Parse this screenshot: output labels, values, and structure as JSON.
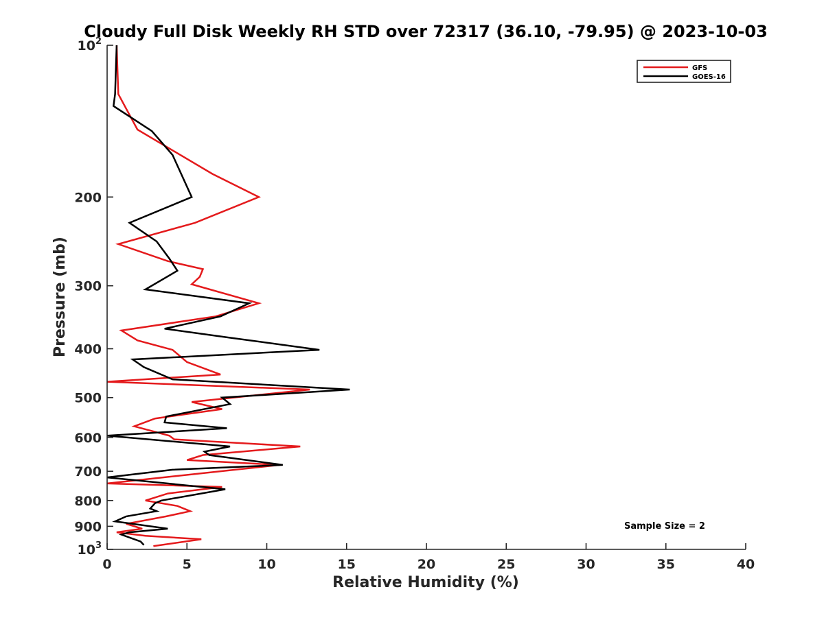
{
  "chart_data": {
    "type": "line",
    "title": "Cloudy Full Disk Weekly RH STD over 72317 (36.10, -79.95) @ 2023-10-03",
    "xlabel": "Relative Humidity (%)",
    "ylabel": "Pressure (mb)",
    "xlim": [
      0,
      40
    ],
    "ylim": [
      100,
      1000
    ],
    "y_scale": "log",
    "y_reversed": true,
    "grid": false,
    "legend_position": "top-right",
    "x_ticks": [
      0,
      5,
      10,
      15,
      20,
      25,
      30,
      35,
      40
    ],
    "x_tick_labels": [
      "0",
      "5",
      "10",
      "15",
      "20",
      "25",
      "30",
      "35",
      "40"
    ],
    "y_ticks": [
      100,
      200,
      300,
      400,
      500,
      600,
      700,
      800,
      900,
      1000
    ],
    "y_tick_labels": [
      {
        "base": "10",
        "sup": "2"
      },
      {
        "base": "200",
        "sup": ""
      },
      {
        "base": "300",
        "sup": ""
      },
      {
        "base": "400",
        "sup": ""
      },
      {
        "base": "500",
        "sup": ""
      },
      {
        "base": "600",
        "sup": ""
      },
      {
        "base": "700",
        "sup": ""
      },
      {
        "base": "800",
        "sup": ""
      },
      {
        "base": "900",
        "sup": ""
      },
      {
        "base": "10",
        "sup": "3"
      }
    ],
    "annotation": "Sample Size = 2",
    "series": [
      {
        "name": "GFS",
        "color": "#e41a1c",
        "points": [
          [
            0.6,
            100
          ],
          [
            0.7,
            125
          ],
          [
            1.9,
            147
          ],
          [
            6.6,
            180
          ],
          [
            9.5,
            200
          ],
          [
            5.5,
            225
          ],
          [
            0.7,
            248
          ],
          [
            3.8,
            268
          ],
          [
            6.0,
            278
          ],
          [
            5.8,
            288
          ],
          [
            5.3,
            298
          ],
          [
            9.5,
            325
          ],
          [
            6.8,
            345
          ],
          [
            0.9,
            368
          ],
          [
            1.9,
            385
          ],
          [
            4.1,
            402
          ],
          [
            5.0,
            425
          ],
          [
            7.1,
            450
          ],
          [
            0.0,
            465
          ],
          [
            12.7,
            482
          ],
          [
            5.3,
            510
          ],
          [
            7.2,
            527
          ],
          [
            3.0,
            550
          ],
          [
            1.7,
            570
          ],
          [
            3.9,
            595
          ],
          [
            4.2,
            605
          ],
          [
            12.1,
            625
          ],
          [
            6.0,
            650
          ],
          [
            5.0,
            665
          ],
          [
            10.8,
            680
          ],
          [
            0.0,
            740
          ],
          [
            7.2,
            752
          ],
          [
            3.8,
            775
          ],
          [
            2.4,
            800
          ],
          [
            4.4,
            820
          ],
          [
            5.2,
            840
          ],
          [
            3.7,
            860
          ],
          [
            1.2,
            890
          ],
          [
            2.2,
            910
          ],
          [
            0.6,
            925
          ],
          [
            2.4,
            940
          ],
          [
            5.9,
            955
          ],
          [
            2.9,
            985
          ]
        ]
      },
      {
        "name": "GOES-16",
        "color": "#000000",
        "points": [
          [
            0.6,
            100
          ],
          [
            0.5,
            125
          ],
          [
            0.4,
            132
          ],
          [
            2.8,
            148
          ],
          [
            4.1,
            165
          ],
          [
            5.3,
            200
          ],
          [
            1.4,
            225
          ],
          [
            3.1,
            245
          ],
          [
            3.9,
            265
          ],
          [
            4.4,
            280
          ],
          [
            2.4,
            305
          ],
          [
            8.9,
            325
          ],
          [
            7.1,
            345
          ],
          [
            3.6,
            365
          ],
          [
            7.6,
            380
          ],
          [
            13.3,
            402
          ],
          [
            1.6,
            420
          ],
          [
            2.3,
            435
          ],
          [
            4.1,
            460
          ],
          [
            15.2,
            482
          ],
          [
            7.2,
            500
          ],
          [
            7.7,
            515
          ],
          [
            3.7,
            545
          ],
          [
            3.6,
            560
          ],
          [
            7.5,
            575
          ],
          [
            0.0,
            595
          ],
          [
            7.7,
            625
          ],
          [
            6.1,
            640
          ],
          [
            6.4,
            650
          ],
          [
            11.0,
            680
          ],
          [
            4.1,
            695
          ],
          [
            0.0,
            720
          ],
          [
            7.4,
            760
          ],
          [
            3.4,
            800
          ],
          [
            3.0,
            810
          ],
          [
            2.7,
            830
          ],
          [
            3.1,
            840
          ],
          [
            1.2,
            860
          ],
          [
            0.5,
            880
          ],
          [
            3.8,
            910
          ],
          [
            1.4,
            925
          ],
          [
            0.9,
            935
          ],
          [
            2.1,
            965
          ],
          [
            2.3,
            980
          ]
        ]
      }
    ]
  }
}
